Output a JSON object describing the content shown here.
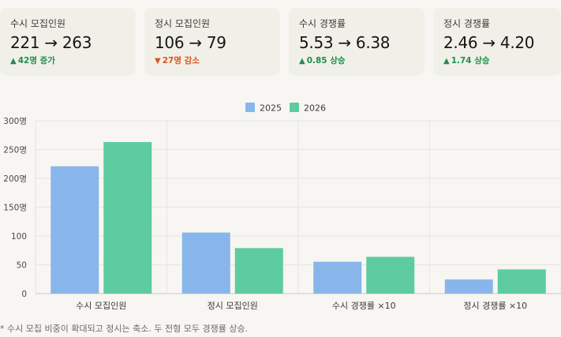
{
  "cards": [
    {
      "label": "수시 모집인원",
      "value": "221 → 263",
      "delta": "42명 증가",
      "direction": "up"
    },
    {
      "label": "정시 모집인원",
      "value": "106 → 79",
      "delta": "27명 감소",
      "direction": "down"
    },
    {
      "label": "수시 경쟁률",
      "value": "5.53 → 6.38",
      "delta": "0.85 상승",
      "direction": "up"
    },
    {
      "label": "정시 경쟁률",
      "value": "2.46 → 4.20",
      "delta": "1.74 상승",
      "direction": "up"
    }
  ],
  "colors": {
    "up": "#1e8e4e",
    "down": "#d9531e",
    "series_2025": "#89b6ea",
    "series_2026": "#5ecba0"
  },
  "chart_data": {
    "type": "bar",
    "categories": [
      "수시 모집인원",
      "정시 모집인원",
      "수시 경쟁률 ×10",
      "정시 경쟁률 ×10"
    ],
    "series": [
      {
        "name": "2025",
        "values": [
          221,
          106,
          55.3,
          24.6
        ]
      },
      {
        "name": "2026",
        "values": [
          263,
          79,
          63.8,
          42
        ]
      }
    ],
    "ylim": [
      0,
      300
    ],
    "yticks": [
      0,
      50,
      100,
      150,
      200,
      250,
      300
    ],
    "ytick_labels": [
      "0",
      "50",
      "100",
      "150명",
      "200명",
      "250명",
      "300명"
    ],
    "legend": "top-center",
    "grid": true
  },
  "footnote": "* 수시 모집 비중이 확대되고 정시는 축소. 두 전형 모두 경쟁률 상승."
}
